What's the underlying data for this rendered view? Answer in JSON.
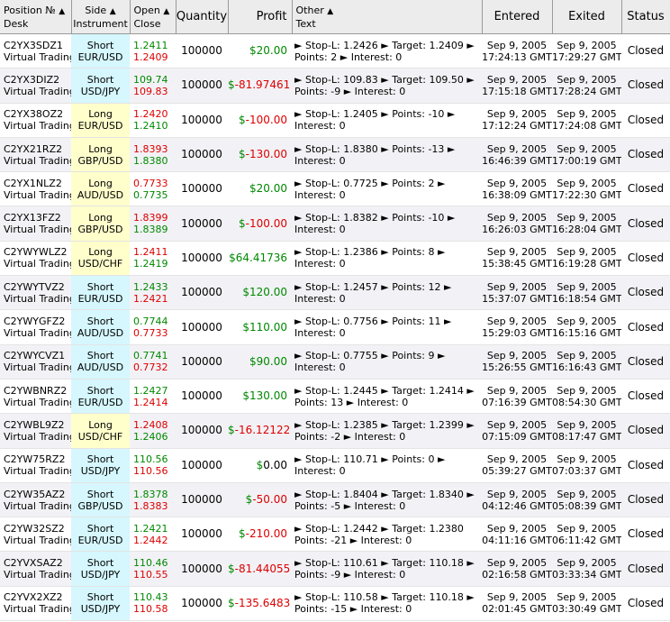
{
  "headers": {
    "position": [
      "Position №",
      "Desk"
    ],
    "side": [
      "Side",
      "Instrument"
    ],
    "openclose": [
      "Open",
      "Close"
    ],
    "quantity": "Quantity",
    "profit": "Profit",
    "other": [
      "Other",
      "Text"
    ],
    "entered": "Entered",
    "exited": "Exited",
    "status": "Status",
    "sort_arrow": "▲"
  },
  "colors": {
    "gain": "#008800",
    "loss": "#dd0000",
    "short_bg": "#d5f7fd",
    "long_bg": "#ffffcc"
  },
  "rows": [
    {
      "pos": "C2YX3SDZ1",
      "desk": "Virtual Trading",
      "side": "Short",
      "instr": "EUR/USD",
      "open": "1.2411",
      "openColor": "green",
      "close": "1.2409",
      "closeColor": "red",
      "qty": "100000",
      "profit_prefix": "$",
      "profit_value": "20.00",
      "profit_color": "green",
      "other": "► Stop-L: 1.2426 ► Target: 1.2409 ► Points: 2 ► Interest: 0",
      "entered": [
        "Sep 9, 2005",
        "17:24:13 GMT"
      ],
      "exited": [
        "Sep 9, 2005",
        "17:29:27 GMT"
      ],
      "status": "Closed"
    },
    {
      "pos": "C2YX3DIZ2",
      "desk": "Virtual Trading",
      "side": "Short",
      "instr": "USD/JPY",
      "open": "109.74",
      "openColor": "green",
      "close": "109.83",
      "closeColor": "red",
      "qty": "100000",
      "profit_prefix": "$",
      "profit_value": "-81.97461",
      "profit_color": "red",
      "other": "► Stop-L: 109.83 ► Target: 109.50 ► Points: -9 ► Interest: 0",
      "entered": [
        "Sep 9, 2005",
        "17:15:18 GMT"
      ],
      "exited": [
        "Sep 9, 2005",
        "17:28:24 GMT"
      ],
      "status": "Closed"
    },
    {
      "pos": "C2YX38OZ2",
      "desk": "Virtual Trading",
      "side": "Long",
      "instr": "EUR/USD",
      "open": "1.2420",
      "openColor": "red",
      "close": "1.2410",
      "closeColor": "green",
      "qty": "100000",
      "profit_prefix": "$",
      "profit_value": "-100.00",
      "profit_color": "red",
      "other": "► Stop-L: 1.2405 ► Points: -10 ► Interest: 0",
      "entered": [
        "Sep 9, 2005",
        "17:12:24 GMT"
      ],
      "exited": [
        "Sep 9, 2005",
        "17:24:08 GMT"
      ],
      "status": "Closed"
    },
    {
      "pos": "C2YX21RZ2",
      "desk": "Virtual Trading",
      "side": "Long",
      "instr": "GBP/USD",
      "open": "1.8393",
      "openColor": "red",
      "close": "1.8380",
      "closeColor": "green",
      "qty": "100000",
      "profit_prefix": "$",
      "profit_value": "-130.00",
      "profit_color": "red",
      "other": "► Stop-L: 1.8380 ► Points: -13 ► Interest: 0",
      "entered": [
        "Sep 9, 2005",
        "16:46:39 GMT"
      ],
      "exited": [
        "Sep 9, 2005",
        "17:00:19 GMT"
      ],
      "status": "Closed"
    },
    {
      "pos": "C2YX1NLZ2",
      "desk": "Virtual Trading",
      "side": "Long",
      "instr": "AUD/USD",
      "open": "0.7733",
      "openColor": "red",
      "close": "0.7735",
      "closeColor": "green",
      "qty": "100000",
      "profit_prefix": "$",
      "profit_value": "20.00",
      "profit_color": "green",
      "other": "► Stop-L: 0.7725 ► Points: 2 ► Interest: 0",
      "entered": [
        "Sep 9, 2005",
        "16:38:09 GMT"
      ],
      "exited": [
        "Sep 9, 2005",
        "17:22:30 GMT"
      ],
      "status": "Closed"
    },
    {
      "pos": "C2YX13FZ2",
      "desk": "Virtual Trading",
      "side": "Long",
      "instr": "GBP/USD",
      "open": "1.8399",
      "openColor": "red",
      "close": "1.8389",
      "closeColor": "green",
      "qty": "100000",
      "profit_prefix": "$",
      "profit_value": "-100.00",
      "profit_color": "red",
      "other": "► Stop-L: 1.8382 ► Points: -10 ► Interest: 0",
      "entered": [
        "Sep 9, 2005",
        "16:26:03 GMT"
      ],
      "exited": [
        "Sep 9, 2005",
        "16:28:04 GMT"
      ],
      "status": "Closed"
    },
    {
      "pos": "C2YWYWLZ2",
      "desk": "Virtual Trading",
      "side": "Long",
      "instr": "USD/CHF",
      "open": "1.2411",
      "openColor": "red",
      "close": "1.2419",
      "closeColor": "green",
      "qty": "100000",
      "profit_prefix": "$",
      "profit_value": "64.41736",
      "profit_color": "green",
      "other": "► Stop-L: 1.2386 ► Points: 8 ► Interest: 0",
      "entered": [
        "Sep 9, 2005",
        "15:38:45 GMT"
      ],
      "exited": [
        "Sep 9, 2005",
        "16:19:28 GMT"
      ],
      "status": "Closed"
    },
    {
      "pos": "C2YWYTVZ2",
      "desk": "Virtual Trading",
      "side": "Short",
      "instr": "EUR/USD",
      "open": "1.2433",
      "openColor": "green",
      "close": "1.2421",
      "closeColor": "red",
      "qty": "100000",
      "profit_prefix": "$",
      "profit_value": "120.00",
      "profit_color": "green",
      "other": "► Stop-L: 1.2457 ► Points: 12 ► Interest: 0",
      "entered": [
        "Sep 9, 2005",
        "15:37:07 GMT"
      ],
      "exited": [
        "Sep 9, 2005",
        "16:18:54 GMT"
      ],
      "status": "Closed"
    },
    {
      "pos": "C2YWYGFZ2",
      "desk": "Virtual Trading",
      "side": "Short",
      "instr": "AUD/USD",
      "open": "0.7744",
      "openColor": "green",
      "close": "0.7733",
      "closeColor": "red",
      "qty": "100000",
      "profit_prefix": "$",
      "profit_value": "110.00",
      "profit_color": "green",
      "other": "► Stop-L: 0.7756 ► Points: 11 ► Interest: 0",
      "entered": [
        "Sep 9, 2005",
        "15:29:03 GMT"
      ],
      "exited": [
        "Sep 9, 2005",
        "16:15:16 GMT"
      ],
      "status": "Closed"
    },
    {
      "pos": "C2YWYCVZ1",
      "desk": "Virtual Trading",
      "side": "Short",
      "instr": "AUD/USD",
      "open": "0.7741",
      "openColor": "green",
      "close": "0.7732",
      "closeColor": "red",
      "qty": "100000",
      "profit_prefix": "$",
      "profit_value": "90.00",
      "profit_color": "green",
      "other": "► Stop-L: 0.7755 ► Points: 9 ► Interest: 0",
      "entered": [
        "Sep 9, 2005",
        "15:26:55 GMT"
      ],
      "exited": [
        "Sep 9, 2005",
        "16:16:43 GMT"
      ],
      "status": "Closed"
    },
    {
      "pos": "C2YWBNRZ2",
      "desk": "Virtual Trading",
      "side": "Short",
      "instr": "EUR/USD",
      "open": "1.2427",
      "openColor": "green",
      "close": "1.2414",
      "closeColor": "red",
      "qty": "100000",
      "profit_prefix": "$",
      "profit_value": "130.00",
      "profit_color": "green",
      "other": "► Stop-L: 1.2445 ► Target: 1.2414 ► Points: 13 ► Interest: 0",
      "entered": [
        "Sep 9, 2005",
        "07:16:39 GMT"
      ],
      "exited": [
        "Sep 9, 2005",
        "08:54:30 GMT"
      ],
      "status": "Closed"
    },
    {
      "pos": "C2YWBL9Z2",
      "desk": "Virtual Trading",
      "side": "Long",
      "instr": "USD/CHF",
      "open": "1.2408",
      "openColor": "red",
      "close": "1.2406",
      "closeColor": "green",
      "qty": "100000",
      "profit_prefix": "$",
      "profit_value": "-16.12122",
      "profit_color": "red",
      "other": "► Stop-L: 1.2385 ► Target: 1.2399 ► Points: -2 ► Interest: 0",
      "entered": [
        "Sep 9, 2005",
        "07:15:09 GMT"
      ],
      "exited": [
        "Sep 9, 2005",
        "08:17:47 GMT"
      ],
      "status": "Closed"
    },
    {
      "pos": "C2YW75RZ2",
      "desk": "Virtual Trading",
      "side": "Short",
      "instr": "USD/JPY",
      "open": "110.56",
      "openColor": "green",
      "close": "110.56",
      "closeColor": "red",
      "qty": "100000",
      "profit_prefix": "$",
      "profit_value": "0.00",
      "profit_color": "black",
      "other": "► Stop-L: 110.71 ► Points: 0 ► Interest: 0",
      "entered": [
        "Sep 9, 2005",
        "05:39:27 GMT"
      ],
      "exited": [
        "Sep 9, 2005",
        "07:03:37 GMT"
      ],
      "status": "Closed"
    },
    {
      "pos": "C2YW35AZ2",
      "desk": "Virtual Trading",
      "side": "Short",
      "instr": "GBP/USD",
      "open": "1.8378",
      "openColor": "green",
      "close": "1.8383",
      "closeColor": "red",
      "qty": "100000",
      "profit_prefix": "$",
      "profit_value": "-50.00",
      "profit_color": "red",
      "other": "► Stop-L: 1.8404 ► Target: 1.8340 ► Points: -5 ► Interest: 0",
      "entered": [
        "Sep 9, 2005",
        "04:12:46 GMT"
      ],
      "exited": [
        "Sep 9, 2005",
        "05:08:39 GMT"
      ],
      "status": "Closed"
    },
    {
      "pos": "C2YW32SZ2",
      "desk": "Virtual Trading",
      "side": "Short",
      "instr": "EUR/USD",
      "open": "1.2421",
      "openColor": "green",
      "close": "1.2442",
      "closeColor": "red",
      "qty": "100000",
      "profit_prefix": "$",
      "profit_value": "-210.00",
      "profit_color": "red",
      "other": "► Stop-L: 1.2442 ► Target: 1.2380 Points: -21 ► Interest: 0",
      "entered": [
        "Sep 9, 2005",
        "04:11:16 GMT"
      ],
      "exited": [
        "Sep 9, 2005",
        "06:11:42 GMT"
      ],
      "status": "Closed"
    },
    {
      "pos": "C2YVXSAZ2",
      "desk": "Virtual Trading",
      "side": "Short",
      "instr": "USD/JPY",
      "open": "110.46",
      "openColor": "green",
      "close": "110.55",
      "closeColor": "red",
      "qty": "100000",
      "profit_prefix": "$",
      "profit_value": "-81.44055",
      "profit_color": "red",
      "other": "► Stop-L: 110.61 ► Target: 110.18 ► Points: -9 ► Interest: 0",
      "entered": [
        "Sep 9, 2005",
        "02:16:58 GMT"
      ],
      "exited": [
        "Sep 9, 2005",
        "03:33:34 GMT"
      ],
      "status": "Closed"
    },
    {
      "pos": "C2YVX2XZ2",
      "desk": "Virtual Trading",
      "side": "Short",
      "instr": "USD/JPY",
      "open": "110.43",
      "openColor": "green",
      "close": "110.58",
      "closeColor": "red",
      "qty": "100000",
      "profit_prefix": "$",
      "profit_value": "-135.6483",
      "profit_color": "red",
      "other": "► Stop-L: 110.58 ► Target: 110.18 ► Points: -15 ► Interest: 0",
      "entered": [
        "Sep 9, 2005",
        "02:01:45 GMT"
      ],
      "exited": [
        "Sep 9, 2005",
        "03:30:49 GMT"
      ],
      "status": "Closed"
    }
  ]
}
